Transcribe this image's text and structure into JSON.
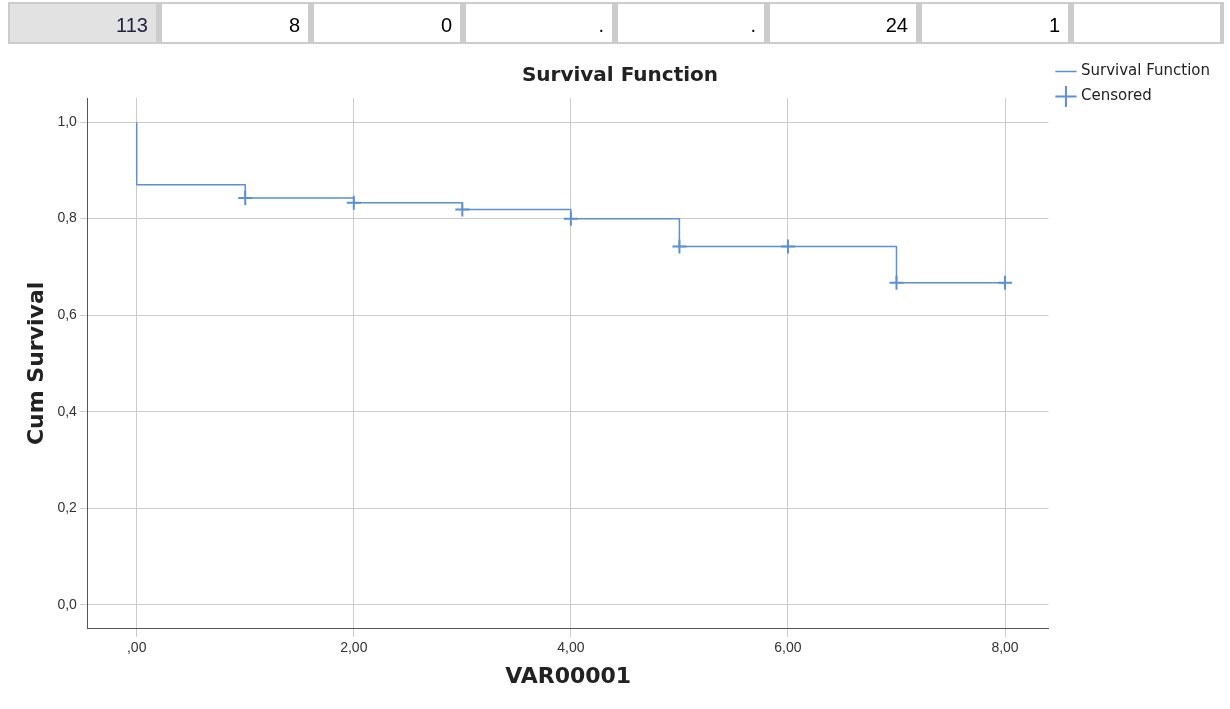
{
  "chart_data": {
    "type": "step",
    "title": "Survival Function",
    "xlabel": "VAR00001",
    "ylabel": "Cum Survival",
    "annotations": [
      "113",
      "8",
      "0",
      ".",
      ".",
      "24",
      "1"
    ],
    "series": [
      {
        "name": "Survival Function",
        "type": "step",
        "color": "#5b8fd6",
        "x": [
          0,
          0,
          1,
          2,
          3,
          4,
          5,
          7,
          8
        ],
        "values": [
          1.0,
          0.87,
          0.843,
          0.833,
          0.819,
          0.8,
          0.742,
          0.667,
          0.667
        ]
      },
      {
        "name": "Censored",
        "type": "scatter",
        "marker": "cross",
        "color": "#5b8fd6",
        "x": [
          1,
          2,
          3,
          4,
          5,
          6,
          7,
          8
        ],
        "values": [
          0.843,
          0.833,
          0.819,
          0.8,
          0.742,
          0.742,
          0.667,
          0.667
        ]
      }
    ],
    "xlim": [
      -0.45,
      8.4
    ],
    "ylim": [
      -0.05,
      1.05
    ],
    "xticks": [
      {
        "value": 0,
        "label": ",00"
      },
      {
        "value": 2,
        "label": "2,00"
      },
      {
        "value": 4,
        "label": "4,00"
      },
      {
        "value": 6,
        "label": "6,00"
      },
      {
        "value": 8,
        "label": "8,00"
      }
    ],
    "yticks": [
      {
        "value": 0,
        "label": "0,0"
      },
      {
        "value": 0.2,
        "label": "0,2"
      },
      {
        "value": 0.4,
        "label": "0,4"
      },
      {
        "value": 0.6,
        "label": "0,6"
      },
      {
        "value": 0.8,
        "label": "0,8"
      },
      {
        "value": 1.0,
        "label": "1,0"
      }
    ],
    "grid": true,
    "legend": "top right"
  }
}
